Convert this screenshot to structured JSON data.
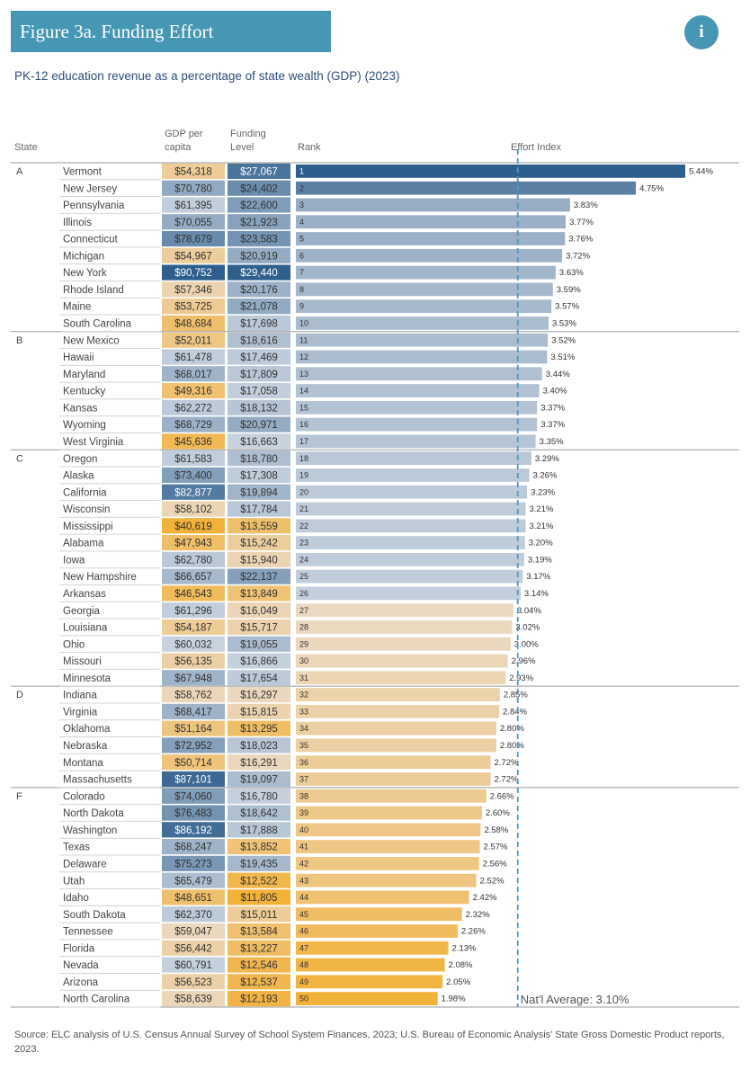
{
  "header": {
    "title": "Figure 3a. Funding Effort",
    "info_icon": "i",
    "subtitle": "PK-12 education revenue as a percentage of state wealth (GDP) (2023)"
  },
  "columns": {
    "state": "State",
    "gdp_line1": "GDP per",
    "gdp_line2": "capita",
    "funding_line1": "Funding",
    "funding_line2": "Level",
    "rank": "Rank",
    "effort": "Effort Index"
  },
  "source": "Source: ELC analysis of U.S. Census Annual Survey of School System Finances, 2023; U.S. Bureau of Economic Analysis' State Gross Domestic Product reports, 2023.",
  "chart_data": {
    "type": "bar",
    "title": "Figure 3a. Funding Effort",
    "subtitle": "PK-12 education revenue as a percentage of state wealth (GDP) (2023)",
    "xlabel": "Effort Index",
    "national_average": {
      "value": 3.1,
      "label": "Nat'l Average: 3.10%"
    },
    "grades": [
      {
        "grade": "A",
        "states": [
          {
            "state": "Vermont",
            "gdp": "$54,318",
            "funding": "$27,067",
            "rank": 1,
            "effort": 5.44,
            "effort_label": "5.44%"
          },
          {
            "state": "New Jersey",
            "gdp": "$70,780",
            "funding": "$24,402",
            "rank": 2,
            "effort": 4.75,
            "effort_label": "4.75%"
          },
          {
            "state": "Pennsylvania",
            "gdp": "$61,395",
            "funding": "$22,600",
            "rank": 3,
            "effort": 3.83,
            "effort_label": "3.83%"
          },
          {
            "state": "Illinois",
            "gdp": "$70,055",
            "funding": "$21,923",
            "rank": 4,
            "effort": 3.77,
            "effort_label": "3.77%"
          },
          {
            "state": "Connecticut",
            "gdp": "$78,679",
            "funding": "$23,583",
            "rank": 5,
            "effort": 3.76,
            "effort_label": "3.76%"
          },
          {
            "state": "Michigan",
            "gdp": "$54,967",
            "funding": "$20,919",
            "rank": 6,
            "effort": 3.72,
            "effort_label": "3.72%"
          },
          {
            "state": "New York",
            "gdp": "$90,752",
            "funding": "$29,440",
            "rank": 7,
            "effort": 3.63,
            "effort_label": "3.63%"
          },
          {
            "state": "Rhode Island",
            "gdp": "$57,346",
            "funding": "$20,176",
            "rank": 8,
            "effort": 3.59,
            "effort_label": "3.59%"
          },
          {
            "state": "Maine",
            "gdp": "$53,725",
            "funding": "$21,078",
            "rank": 9,
            "effort": 3.57,
            "effort_label": "3.57%"
          },
          {
            "state": "South Carolina",
            "gdp": "$48,684",
            "funding": "$17,698",
            "rank": 10,
            "effort": 3.53,
            "effort_label": "3.53%"
          }
        ]
      },
      {
        "grade": "B",
        "states": [
          {
            "state": "New Mexico",
            "gdp": "$52,011",
            "funding": "$18,616",
            "rank": 11,
            "effort": 3.52,
            "effort_label": "3.52%"
          },
          {
            "state": "Hawaii",
            "gdp": "$61,478",
            "funding": "$17,469",
            "rank": 12,
            "effort": 3.51,
            "effort_label": "3.51%"
          },
          {
            "state": "Maryland",
            "gdp": "$68,017",
            "funding": "$17,809",
            "rank": 13,
            "effort": 3.44,
            "effort_label": "3.44%"
          },
          {
            "state": "Kentucky",
            "gdp": "$49,316",
            "funding": "$17,058",
            "rank": 14,
            "effort": 3.4,
            "effort_label": "3.40%"
          },
          {
            "state": "Kansas",
            "gdp": "$62,272",
            "funding": "$18,132",
            "rank": 15,
            "effort": 3.37,
            "effort_label": "3.37%"
          },
          {
            "state": "Wyoming",
            "gdp": "$68,729",
            "funding": "$20,971",
            "rank": 16,
            "effort": 3.37,
            "effort_label": "3.37%"
          },
          {
            "state": "West Virginia",
            "gdp": "$45,636",
            "funding": "$16,663",
            "rank": 17,
            "effort": 3.35,
            "effort_label": "3.35%"
          }
        ]
      },
      {
        "grade": "C",
        "states": [
          {
            "state": "Oregon",
            "gdp": "$61,583",
            "funding": "$18,780",
            "rank": 18,
            "effort": 3.29,
            "effort_label": "3.29%"
          },
          {
            "state": "Alaska",
            "gdp": "$73,400",
            "funding": "$17,308",
            "rank": 19,
            "effort": 3.26,
            "effort_label": "3.26%"
          },
          {
            "state": "California",
            "gdp": "$82,877",
            "funding": "$19,894",
            "rank": 20,
            "effort": 3.23,
            "effort_label": "3.23%"
          },
          {
            "state": "Wisconsin",
            "gdp": "$58,102",
            "funding": "$17,784",
            "rank": 21,
            "effort": 3.21,
            "effort_label": "3.21%"
          },
          {
            "state": "Mississippi",
            "gdp": "$40,619",
            "funding": "$13,559",
            "rank": 22,
            "effort": 3.21,
            "effort_label": "3.21%"
          },
          {
            "state": "Alabama",
            "gdp": "$47,943",
            "funding": "$15,242",
            "rank": 23,
            "effort": 3.2,
            "effort_label": "3.20%"
          },
          {
            "state": "Iowa",
            "gdp": "$62,780",
            "funding": "$15,940",
            "rank": 24,
            "effort": 3.19,
            "effort_label": "3.19%"
          },
          {
            "state": "New Hampshire",
            "gdp": "$66,657",
            "funding": "$22,137",
            "rank": 25,
            "effort": 3.17,
            "effort_label": "3.17%"
          },
          {
            "state": "Arkansas",
            "gdp": "$46,543",
            "funding": "$13,849",
            "rank": 26,
            "effort": 3.14,
            "effort_label": "3.14%"
          },
          {
            "state": "Georgia",
            "gdp": "$61,296",
            "funding": "$16,049",
            "rank": 27,
            "effort": 3.04,
            "effort_label": "3.04%"
          },
          {
            "state": "Louisiana",
            "gdp": "$54,187",
            "funding": "$15,717",
            "rank": 28,
            "effort": 3.02,
            "effort_label": "3.02%"
          },
          {
            "state": "Ohio",
            "gdp": "$60,032",
            "funding": "$19,055",
            "rank": 29,
            "effort": 3.0,
            "effort_label": "3.00%"
          },
          {
            "state": "Missouri",
            "gdp": "$56,135",
            "funding": "$16,866",
            "rank": 30,
            "effort": 2.96,
            "effort_label": "2.96%"
          },
          {
            "state": "Minnesota",
            "gdp": "$67,948",
            "funding": "$17,654",
            "rank": 31,
            "effort": 2.93,
            "effort_label": "2.93%"
          }
        ]
      },
      {
        "grade": "D",
        "states": [
          {
            "state": "Indiana",
            "gdp": "$58,762",
            "funding": "$16,297",
            "rank": 32,
            "effort": 2.85,
            "effort_label": "2.85%"
          },
          {
            "state": "Virginia",
            "gdp": "$68,417",
            "funding": "$15,815",
            "rank": 33,
            "effort": 2.84,
            "effort_label": "2.84%"
          },
          {
            "state": "Oklahoma",
            "gdp": "$51,164",
            "funding": "$13,295",
            "rank": 34,
            "effort": 2.8,
            "effort_label": "2.80%"
          },
          {
            "state": "Nebraska",
            "gdp": "$72,952",
            "funding": "$18,023",
            "rank": 35,
            "effort": 2.8,
            "effort_label": "2.80%"
          },
          {
            "state": "Montana",
            "gdp": "$50,714",
            "funding": "$16,291",
            "rank": 36,
            "effort": 2.72,
            "effort_label": "2.72%"
          },
          {
            "state": "Massachusetts",
            "gdp": "$87,101",
            "funding": "$19,097",
            "rank": 37,
            "effort": 2.72,
            "effort_label": "2.72%"
          }
        ]
      },
      {
        "grade": "F",
        "states": [
          {
            "state": "Colorado",
            "gdp": "$74,060",
            "funding": "$16,780",
            "rank": 38,
            "effort": 2.66,
            "effort_label": "2.66%"
          },
          {
            "state": "North Dakota",
            "gdp": "$76,483",
            "funding": "$18,642",
            "rank": 39,
            "effort": 2.6,
            "effort_label": "2.60%"
          },
          {
            "state": "Washington",
            "gdp": "$86,192",
            "funding": "$17,888",
            "rank": 40,
            "effort": 2.58,
            "effort_label": "2.58%"
          },
          {
            "state": "Texas",
            "gdp": "$68,247",
            "funding": "$13,852",
            "rank": 41,
            "effort": 2.57,
            "effort_label": "2.57%"
          },
          {
            "state": "Delaware",
            "gdp": "$75,273",
            "funding": "$19,435",
            "rank": 42,
            "effort": 2.56,
            "effort_label": "2.56%"
          },
          {
            "state": "Utah",
            "gdp": "$65,479",
            "funding": "$12,522",
            "rank": 43,
            "effort": 2.52,
            "effort_label": "2.52%"
          },
          {
            "state": "Idaho",
            "gdp": "$48,651",
            "funding": "$11,805",
            "rank": 44,
            "effort": 2.42,
            "effort_label": "2.42%"
          },
          {
            "state": "South Dakota",
            "gdp": "$62,370",
            "funding": "$15,011",
            "rank": 45,
            "effort": 2.32,
            "effort_label": "2.32%"
          },
          {
            "state": "Tennessee",
            "gdp": "$59,047",
            "funding": "$13,584",
            "rank": 46,
            "effort": 2.26,
            "effort_label": "2.26%"
          },
          {
            "state": "Florida",
            "gdp": "$56,442",
            "funding": "$13,227",
            "rank": 47,
            "effort": 2.13,
            "effort_label": "2.13%"
          },
          {
            "state": "Nevada",
            "gdp": "$60,791",
            "funding": "$12,546",
            "rank": 48,
            "effort": 2.08,
            "effort_label": "2.08%"
          },
          {
            "state": "Arizona",
            "gdp": "$56,523",
            "funding": "$12,537",
            "rank": 49,
            "effort": 2.05,
            "effort_label": "2.05%"
          },
          {
            "state": "North Carolina",
            "gdp": "$58,639",
            "funding": "$12,193",
            "rank": 50,
            "effort": 1.98,
            "effort_label": "1.98%"
          }
        ]
      }
    ]
  }
}
